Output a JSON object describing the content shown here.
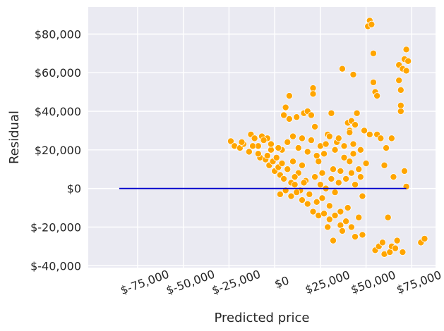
{
  "chart_data": {
    "type": "scatter",
    "title": "",
    "xlabel": "Predicted price",
    "ylabel": "Residual",
    "xlim": [
      -102000,
      88000
    ],
    "ylim": [
      -41000,
      94000
    ],
    "x_ticks": [
      -75000,
      -50000,
      -25000,
      0,
      25000,
      50000,
      75000
    ],
    "x_tick_labels": [
      "$-75,000",
      "$-50,000",
      "$-25,000",
      "$0",
      "$25,000",
      "$50,000",
      "$75,000"
    ],
    "y_ticks": [
      -40000,
      -20000,
      0,
      20000,
      40000,
      60000,
      80000
    ],
    "y_tick_labels": [
      "$-40,000",
      "$-20,000",
      "$0",
      "$20,000",
      "$40,000",
      "$60,000",
      "$80,000"
    ],
    "grid": true,
    "reference_line": {
      "y": 0,
      "x_start": -85000,
      "x_end": 72000,
      "color": "#0000cc"
    },
    "marker_color": "#ffa500",
    "background_color": "#eaeaf2",
    "points": [
      [
        -24000,
        24500
      ],
      [
        -22000,
        22000
      ],
      [
        -19000,
        21000
      ],
      [
        -17000,
        23000
      ],
      [
        -14000,
        19000
      ],
      [
        -13000,
        28000
      ],
      [
        -11000,
        26000
      ],
      [
        -9000,
        22000
      ],
      [
        -8000,
        16000
      ],
      [
        -7000,
        27000
      ],
      [
        -5000,
        15000
      ],
      [
        -4000,
        26000
      ],
      [
        -3000,
        12000
      ],
      [
        -2000,
        20000
      ],
      [
        -1000,
        14000
      ],
      [
        0,
        9000
      ],
      [
        1000,
        16000
      ],
      [
        2000,
        11000
      ],
      [
        3000,
        7000
      ],
      [
        4000,
        13000
      ],
      [
        5000,
        5000
      ],
      [
        5000,
        38000
      ],
      [
        6000,
        42000
      ],
      [
        7000,
        10000
      ],
      [
        8000,
        48000
      ],
      [
        8000,
        36000
      ],
      [
        9000,
        3000
      ],
      [
        10000,
        14000
      ],
      [
        11000,
        2000
      ],
      [
        12000,
        37000
      ],
      [
        13000,
        8000
      ],
      [
        14000,
        -1000
      ],
      [
        15000,
        12000
      ],
      [
        16000,
        39000
      ],
      [
        17000,
        4000
      ],
      [
        18000,
        40000
      ],
      [
        19000,
        -3000
      ],
      [
        20000,
        38000
      ],
      [
        21000,
        52000
      ],
      [
        21000,
        49000
      ],
      [
        22000,
        32000
      ],
      [
        22000,
        6000
      ],
      [
        23000,
        -7000
      ],
      [
        24000,
        14000
      ],
      [
        25000,
        2000
      ],
      [
        26000,
        -5000
      ],
      [
        27000,
        18000
      ],
      [
        28000,
        0
      ],
      [
        29000,
        28000
      ],
      [
        30000,
        -9000
      ],
      [
        31000,
        39000
      ],
      [
        32000,
        10000
      ],
      [
        33000,
        -2000
      ],
      [
        34000,
        24000
      ],
      [
        35000,
        3000
      ],
      [
        36000,
        -12000
      ],
      [
        37000,
        62000
      ],
      [
        38000,
        16000
      ],
      [
        39000,
        5000
      ],
      [
        40000,
        -10000
      ],
      [
        41000,
        30000
      ],
      [
        42000,
        8000
      ],
      [
        43000,
        59000
      ],
      [
        44000,
        2000
      ],
      [
        45000,
        39000
      ],
      [
        46000,
        -15000
      ],
      [
        47000,
        20000
      ],
      [
        48000,
        -24000
      ],
      [
        49000,
        30000
      ],
      [
        50000,
        13000
      ],
      [
        51000,
        84000
      ],
      [
        52000,
        87000
      ],
      [
        52000,
        28000
      ],
      [
        53000,
        85000
      ],
      [
        54000,
        70000
      ],
      [
        54000,
        55000
      ],
      [
        55000,
        50000
      ],
      [
        55000,
        -32000
      ],
      [
        56000,
        28000
      ],
      [
        56000,
        48000
      ],
      [
        57000,
        -30000
      ],
      [
        58000,
        26000
      ],
      [
        59000,
        -28000
      ],
      [
        60000,
        12000
      ],
      [
        60000,
        -34000
      ],
      [
        61000,
        21000
      ],
      [
        62000,
        -15000
      ],
      [
        63000,
        -33000
      ],
      [
        64000,
        26000
      ],
      [
        64000,
        -30000
      ],
      [
        65000,
        6000
      ],
      [
        66000,
        -31000
      ],
      [
        67000,
        -27000
      ],
      [
        68000,
        56000
      ],
      [
        68000,
        64000
      ],
      [
        69000,
        43000
      ],
      [
        69000,
        40000
      ],
      [
        69000,
        51000
      ],
      [
        70000,
        62000
      ],
      [
        70000,
        -33000
      ],
      [
        71000,
        67000
      ],
      [
        71000,
        9000
      ],
      [
        72000,
        72000
      ],
      [
        72000,
        61000
      ],
      [
        72000,
        1000
      ],
      [
        73000,
        66000
      ],
      [
        80000,
        -28000
      ],
      [
        82000,
        -26000
      ],
      [
        -18000,
        24000
      ],
      [
        -12000,
        22000
      ],
      [
        -6000,
        25000
      ],
      [
        -2000,
        23000
      ],
      [
        4000,
        20000
      ],
      [
        10000,
        27000
      ],
      [
        15000,
        26000
      ],
      [
        20000,
        25000
      ],
      [
        25000,
        22000
      ],
      [
        30000,
        27000
      ],
      [
        35000,
        26000
      ],
      [
        40000,
        34000
      ],
      [
        41000,
        29000
      ],
      [
        42000,
        35000
      ],
      [
        43000,
        23000
      ],
      [
        44000,
        33000
      ],
      [
        3000,
        -3000
      ],
      [
        6000,
        -1000
      ],
      [
        9000,
        -4000
      ],
      [
        12000,
        -2000
      ],
      [
        15000,
        -6000
      ],
      [
        18000,
        -8000
      ],
      [
        21000,
        -12000
      ],
      [
        24000,
        -14000
      ],
      [
        27000,
        -13000
      ],
      [
        30000,
        -16000
      ],
      [
        33000,
        -14000
      ],
      [
        36000,
        -19000
      ],
      [
        39000,
        -17000
      ],
      [
        42000,
        -20000
      ],
      [
        32000,
        -27000
      ],
      [
        37000,
        -22000
      ],
      [
        44000,
        -25000
      ],
      [
        29000,
        -20000
      ],
      [
        -9000,
        18000
      ],
      [
        -4000,
        17000
      ],
      [
        2000,
        21000
      ],
      [
        7000,
        24000
      ],
      [
        13000,
        21000
      ],
      [
        18000,
        19000
      ],
      [
        23000,
        17000
      ],
      [
        28000,
        23000
      ],
      [
        33000,
        20000
      ],
      [
        38000,
        22000
      ],
      [
        43000,
        18000
      ],
      [
        46000,
        10000
      ],
      [
        47000,
        6000
      ],
      [
        48000,
        -4000
      ],
      [
        26000,
        8000
      ],
      [
        31000,
        5000
      ],
      [
        36000,
        9000
      ],
      [
        41000,
        14000
      ],
      [
        16000,
        3000
      ],
      [
        11000,
        6000
      ]
    ]
  }
}
